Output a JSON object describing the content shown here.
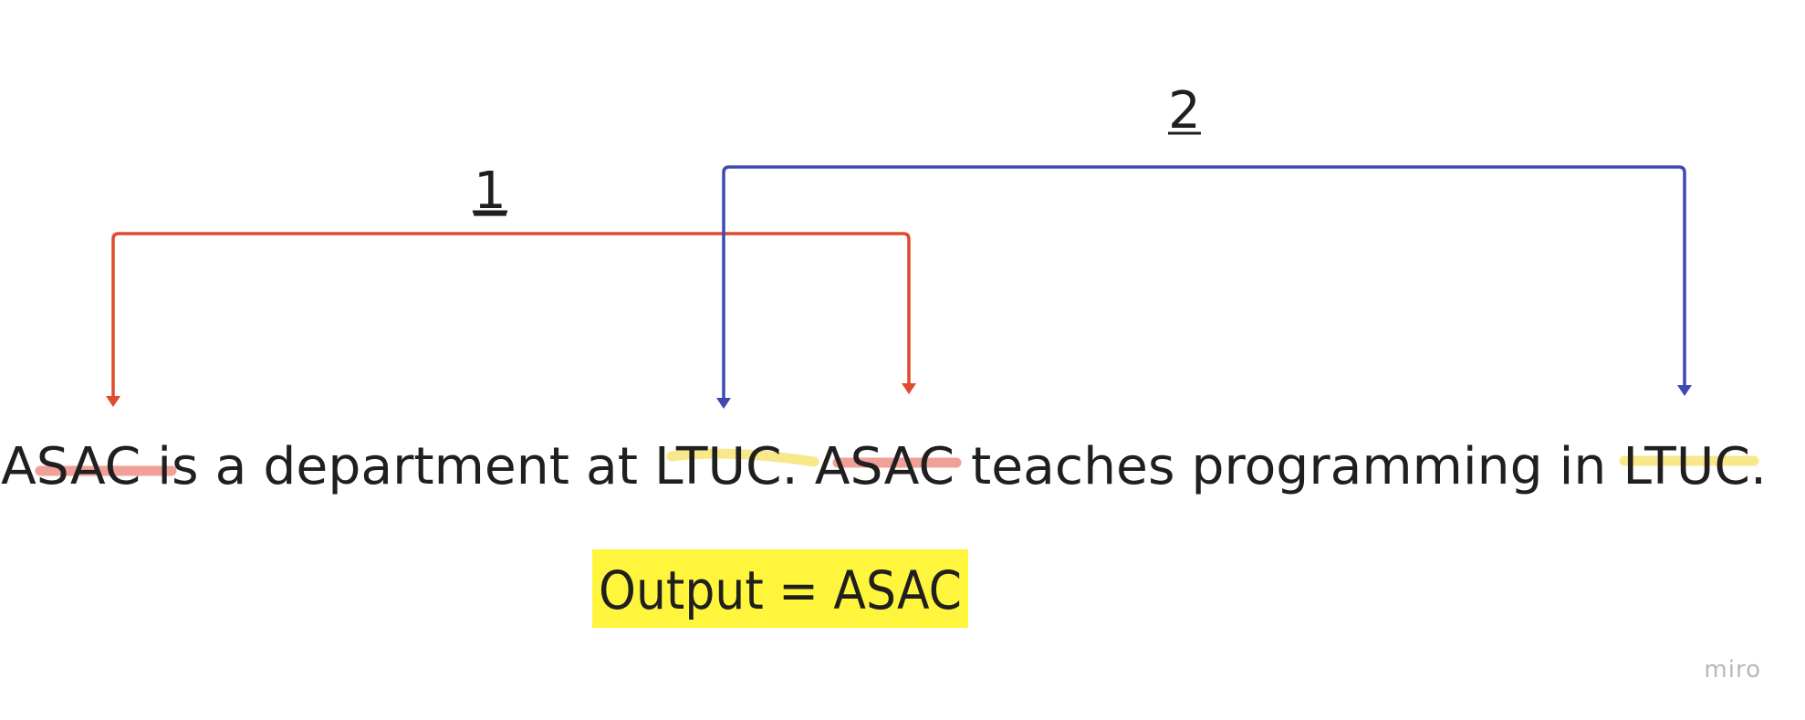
{
  "labels": {
    "arrow1": "1",
    "arrow2": "2"
  },
  "sentence": [
    {
      "text": "ASAC",
      "highlight": "red"
    },
    {
      "text": " is a department at ",
      "highlight": null
    },
    {
      "text": "LTUC",
      "highlight": "yellow"
    },
    {
      "text": ". ",
      "highlight": null
    },
    {
      "text": "ASAC",
      "highlight": "red"
    },
    {
      "text": " teaches programming in ",
      "highlight": null
    },
    {
      "text": "LTUC",
      "highlight": "yellow"
    },
    {
      "text": ".",
      "highlight": null
    }
  ],
  "output": {
    "text": "Output = ASAC"
  },
  "watermark": {
    "text": "miro"
  },
  "colors": {
    "arrow1": "#e04a2f",
    "arrow2": "#3f4ab0",
    "highlight_red": "#f0a096",
    "highlight_yellow": "#f8e88a",
    "output_bg": "#fff53d",
    "text": "#1f1f1f",
    "watermark": "#b8b8b8"
  }
}
